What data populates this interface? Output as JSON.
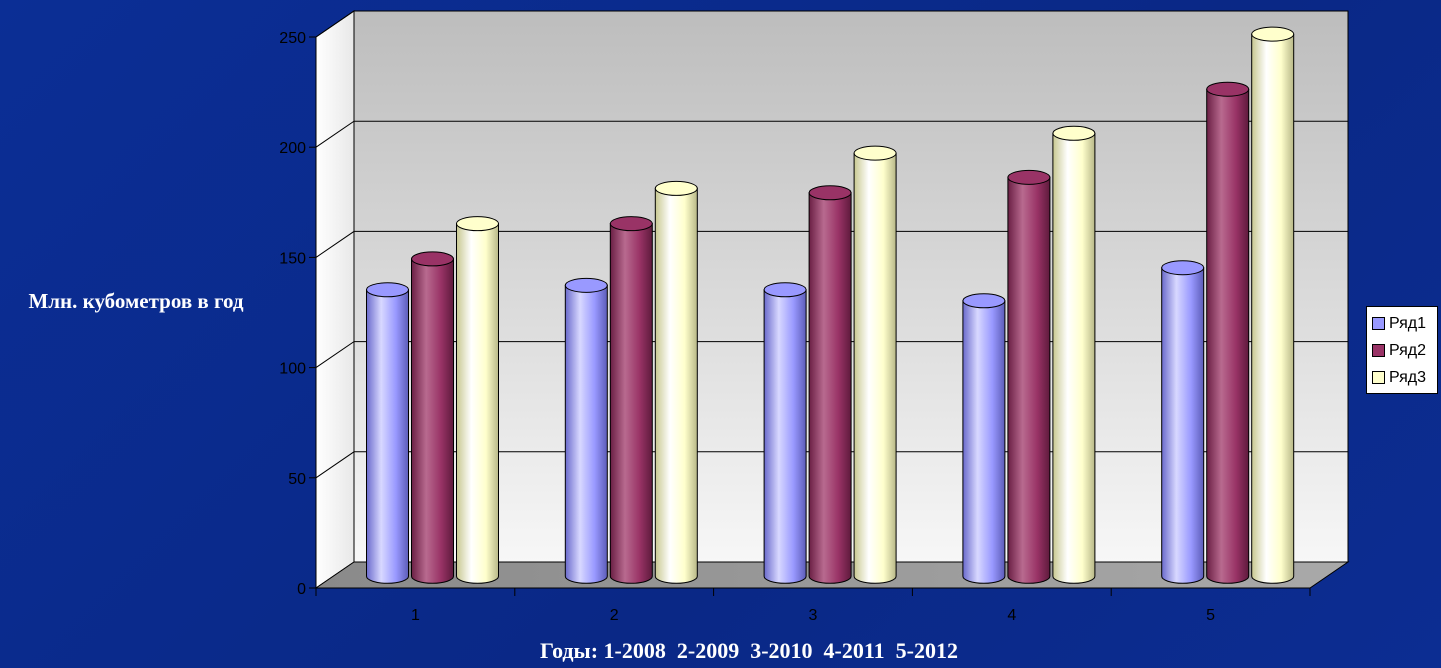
{
  "chart_data": {
    "type": "bar",
    "categories": [
      "1",
      "2",
      "3",
      "4",
      "5"
    ],
    "series": [
      {
        "name": "Ряд1",
        "values": [
          130,
          132,
          130,
          125,
          140
        ],
        "color": "#9999ff"
      },
      {
        "name": "Ряд2",
        "values": [
          144,
          160,
          174,
          181,
          221
        ],
        "color": "#993366"
      },
      {
        "name": "Ряд3",
        "values": [
          160,
          176,
          192,
          201,
          246
        ],
        "color": "#ffffcc"
      }
    ],
    "ylabel": "Млн. кубометров в год",
    "xlabel": "Годы: 1-2008  2-2009  3-2010  4-2011  5-2012",
    "ylim": [
      0,
      250
    ],
    "yticks": [
      "0",
      "50",
      "100",
      "150",
      "200",
      "250"
    ],
    "grid": true,
    "legend_position": "right",
    "style": "3d-cylinder"
  }
}
